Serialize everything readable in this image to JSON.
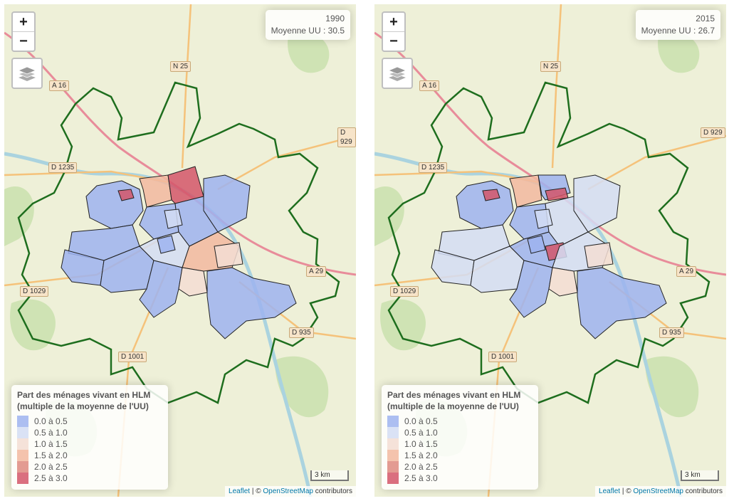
{
  "maps": [
    {
      "year": "1990",
      "mean_label": "Moyenne UU : 30.5",
      "variant": "a"
    },
    {
      "year": "2015",
      "mean_label": "Moyenne UU : 26.7",
      "variant": "b"
    }
  ],
  "zoom_in": "+",
  "zoom_out": "−",
  "legend": {
    "title": "Part des ménages vivant en HLM (multiple de la moyenne de l'UU)",
    "classes": [
      {
        "label": "0.0 à 0.5",
        "color": "#9db3f0"
      },
      {
        "label": "0.5 à 1.0",
        "color": "#d4ddf4"
      },
      {
        "label": "1.0 à 1.5",
        "color": "#f3ddd3"
      },
      {
        "label": "1.5 à 2.0",
        "color": "#f2b8a0"
      },
      {
        "label": "2.0 à 2.5",
        "color": "#de8a80"
      },
      {
        "label": "2.5 à 3.0",
        "color": "#d3566a"
      }
    ]
  },
  "road_labels": {
    "a16": "A 16",
    "n25": "N 25",
    "d929": "D 929",
    "d1235": "D 1235",
    "a29": "A 29",
    "d1029": "D 1029",
    "d935": "D 935",
    "d1001": "D 1001"
  },
  "scale": "3 km",
  "attribution": {
    "leaflet": "Leaflet",
    "sep": " | © ",
    "osm": "OpenStreetMap",
    "rest": " contributors"
  },
  "colors": {
    "boundary": "#1e6e1e",
    "district_border": "#222222",
    "motorway": "#e88c9a",
    "primary_road": "#f5c27a"
  }
}
